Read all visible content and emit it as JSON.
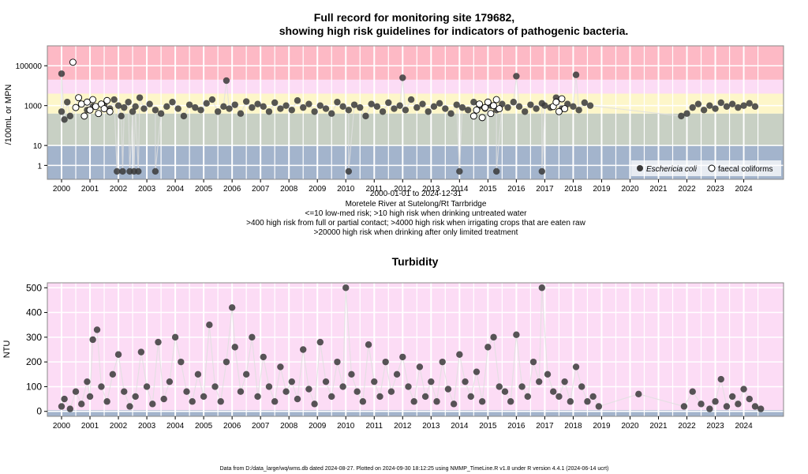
{
  "chart_data": [
    {
      "type": "scatter",
      "title_line1": "Full record for monitoring site 179682,",
      "title_line2": "showing high risk guidelines for indicators of pathogenic bacteria.",
      "ylabel": "/100mL or MPN",
      "yscale": "log",
      "ylim": [
        0.2,
        1000000
      ],
      "xlim": [
        1999.5,
        2025.4
      ],
      "y_ticks": [
        {
          "v": 1,
          "label": "1"
        },
        {
          "v": 10,
          "label": "10"
        },
        {
          "v": 1000,
          "label": "1000"
        },
        {
          "v": 100000,
          "label": "100000"
        }
      ],
      "x_ticks": [
        "2000",
        "2001",
        "2002",
        "2003",
        "2004",
        "2005",
        "2006",
        "2007",
        "2008",
        "2009",
        "2010",
        "2011",
        "2012",
        "2013",
        "2014",
        "2015",
        "2016",
        "2017",
        "2018",
        "2019",
        "2020",
        "2021",
        "2022",
        "2023",
        "2024"
      ],
      "risk_bands": [
        {
          "from": 0.2,
          "to": 10,
          "color": "#a3b4cc"
        },
        {
          "from": 10,
          "to": 400,
          "color": "#c8d0c4"
        },
        {
          "from": 400,
          "to": 4000,
          "color": "#fdf6c9"
        },
        {
          "from": 4000,
          "to": 20000,
          "color": "#fcdcf5"
        },
        {
          "from": 20000,
          "to": 1000000,
          "color": "#fdb9c5"
        }
      ],
      "info_lines": [
        "2000-01-01 to 2024-12-31",
        "Moretele River at Sutelong/Rt Tarrbridge",
        "<=10 low-med risk; >10 high risk when drinking untreated water",
        ">400 high risk from full or partial contact; >4000 high risk when irrigating crops that are eaten raw",
        ">20000 high risk when drinking after only limited treatment"
      ],
      "legend_position": "bottom-right",
      "series": [
        {
          "name": "Eschericia coli",
          "marker": "filled",
          "color": "#3a3a3a",
          "x": [
            2000.0,
            2000.1,
            2000.2,
            2000.3,
            2000.5,
            2000.7,
            2000.9,
            2001.1,
            2001.3,
            2001.5,
            2001.7,
            2001.85,
            2002.0,
            2002.1,
            2002.2,
            2002.35,
            2002.5,
            2002.6,
            2002.75,
            2002.9,
            2003.1,
            2003.3,
            2003.5,
            2003.7,
            2003.9,
            2004.1,
            2004.3,
            2004.5,
            2004.7,
            2004.9,
            2005.1,
            2005.3,
            2005.5,
            2005.7,
            2005.9,
            2006.1,
            2006.3,
            2006.5,
            2006.7,
            2006.9,
            2007.1,
            2007.3,
            2007.5,
            2007.7,
            2007.9,
            2008.1,
            2008.3,
            2008.5,
            2008.7,
            2008.9,
            2009.1,
            2009.3,
            2009.5,
            2009.7,
            2009.9,
            2010.1,
            2010.3,
            2010.5,
            2010.7,
            2010.9,
            2011.1,
            2011.3,
            2011.5,
            2011.7,
            2011.9,
            2012.1,
            2012.3,
            2012.5,
            2012.7,
            2012.9,
            2013.1,
            2013.3,
            2013.5,
            2013.7,
            2013.9,
            2014.1,
            2014.3,
            2014.5,
            2014.7,
            2014.9,
            2015.1,
            2015.3,
            2015.5,
            2015.7,
            2015.9,
            2016.1,
            2016.3,
            2016.5,
            2016.7,
            2016.9,
            2017.0,
            2017.2,
            2017.4,
            2017.6,
            2017.8,
            2018.0,
            2018.2,
            2018.4,
            2018.6,
            2021.8,
            2022.0,
            2022.2,
            2022.4,
            2022.6,
            2022.8,
            2023.0,
            2023.2,
            2023.4,
            2023.6,
            2023.8,
            2024.0,
            2024.2,
            2024.4,
            2001.95,
            2002.15,
            2002.4,
            2002.55,
            2002.7,
            2003.3,
            2010.1,
            2014.0,
            2015.3,
            2016.9,
            2018.1,
            2000.0,
            2005.8,
            2012.0,
            2016.0
          ],
          "y": [
            500,
            200,
            1500,
            300,
            800,
            1200,
            600,
            900,
            400,
            1100,
            700,
            2000,
            1000,
            300,
            800,
            1500,
            500,
            900,
            2500,
            700,
            1200,
            600,
            400,
            900,
            1500,
            700,
            300,
            1100,
            800,
            600,
            1300,
            2000,
            500,
            900,
            700,
            1100,
            400,
            1600,
            800,
            1200,
            900,
            500,
            1400,
            700,
            1000,
            600,
            1800,
            800,
            1200,
            500,
            1000,
            700,
            400,
            1500,
            900,
            600,
            1100,
            800,
            300,
            1200,
            900,
            500,
            1400,
            700,
            1000,
            600,
            2000,
            800,
            1200,
            500,
            900,
            1300,
            700,
            400,
            1100,
            800,
            600,
            1500,
            900,
            700,
            1000,
            600,
            1200,
            800,
            1500,
            900,
            500,
            1100,
            700,
            1300,
            1000,
            800,
            2500,
            700,
            1200,
            900,
            600,
            1400,
            1000,
            300,
            400,
            800,
            1200,
            600,
            1000,
            700,
            1400,
            900,
            1200,
            800,
            1000,
            1300,
            900,
            0.5,
            0.5,
            0.5,
            0.5,
            0.5,
            0.5,
            0.5,
            0.5,
            0.5,
            0.5,
            35000,
            40000,
            18000,
            25000,
            30000
          ]
        },
        {
          "name": "faecal coliforms",
          "marker": "open",
          "color": "#000000",
          "x": [
            2000.4,
            2000.5,
            2000.6,
            2000.7,
            2000.8,
            2000.9,
            2001.0,
            2001.1,
            2001.2,
            2001.3,
            2001.4,
            2001.5,
            2001.6,
            2001.7,
            2014.5,
            2014.6,
            2014.7,
            2014.8,
            2014.9,
            2015.0,
            2015.1,
            2015.2,
            2015.3,
            2015.4,
            2017.3,
            2017.4,
            2017.5,
            2017.6,
            2017.7
          ],
          "y": [
            150000,
            800,
            2500,
            1200,
            300,
            1500,
            600,
            2000,
            900,
            400,
            1200,
            700,
            1800,
            500,
            300,
            600,
            1200,
            250,
            800,
            1500,
            400,
            1000,
            2000,
            700,
            900,
            1500,
            500,
            2200,
            700
          ]
        }
      ]
    },
    {
      "type": "scatter",
      "title": "Turbidity",
      "ylabel": "NTU",
      "ylim": [
        -20,
        520
      ],
      "xlim": [
        1999.5,
        2025.4
      ],
      "y_ticks": [
        {
          "v": 0,
          "label": "0"
        },
        {
          "v": 100,
          "label": "100"
        },
        {
          "v": 200,
          "label": "200"
        },
        {
          "v": 300,
          "label": "300"
        },
        {
          "v": 400,
          "label": "400"
        },
        {
          "v": 500,
          "label": "500"
        }
      ],
      "x_ticks": [
        "2000",
        "2001",
        "2002",
        "2003",
        "2004",
        "2005",
        "2006",
        "2007",
        "2008",
        "2009",
        "2010",
        "2011",
        "2012",
        "2013",
        "2014",
        "2015",
        "2016",
        "2017",
        "2018",
        "2019",
        "2020",
        "2021",
        "2022",
        "2023",
        "2024"
      ],
      "risk_bands": [
        {
          "from": -20,
          "to": 5,
          "color": "#a3b4cc"
        },
        {
          "from": 5,
          "to": 520,
          "color": "#fcdcf5"
        }
      ],
      "series": [
        {
          "name": "Turbidity",
          "marker": "filled",
          "color": "#3a3a3a",
          "x": [
            2000.0,
            2000.1,
            2000.3,
            2000.5,
            2000.7,
            2000.9,
            2001.0,
            2001.1,
            2001.25,
            2001.4,
            2001.6,
            2001.8,
            2002.0,
            2002.2,
            2002.4,
            2002.6,
            2002.8,
            2003.0,
            2003.2,
            2003.4,
            2003.6,
            2003.8,
            2004.0,
            2004.2,
            2004.4,
            2004.6,
            2004.8,
            2005.0,
            2005.2,
            2005.4,
            2005.6,
            2005.8,
            2006.0,
            2006.1,
            2006.3,
            2006.5,
            2006.7,
            2006.9,
            2007.1,
            2007.3,
            2007.5,
            2007.7,
            2007.9,
            2008.1,
            2008.3,
            2008.5,
            2008.7,
            2008.9,
            2009.1,
            2009.3,
            2009.5,
            2009.7,
            2009.9,
            2010.0,
            2010.2,
            2010.4,
            2010.6,
            2010.8,
            2011.0,
            2011.2,
            2011.4,
            2011.6,
            2011.8,
            2012.0,
            2012.2,
            2012.4,
            2012.6,
            2012.8,
            2013.0,
            2013.2,
            2013.4,
            2013.6,
            2013.8,
            2014.0,
            2014.2,
            2014.4,
            2014.6,
            2014.8,
            2015.0,
            2015.2,
            2015.4,
            2015.6,
            2015.8,
            2016.0,
            2016.2,
            2016.4,
            2016.6,
            2016.8,
            2016.9,
            2017.1,
            2017.3,
            2017.5,
            2017.7,
            2017.9,
            2018.1,
            2018.3,
            2018.5,
            2018.7,
            2018.9,
            2020.3,
            2021.9,
            2022.2,
            2022.5,
            2022.8,
            2023.0,
            2023.2,
            2023.4,
            2023.6,
            2023.8,
            2024.0,
            2024.2,
            2024.4,
            2024.6
          ],
          "y": [
            20,
            50,
            10,
            80,
            30,
            120,
            60,
            290,
            330,
            100,
            40,
            150,
            230,
            80,
            20,
            60,
            240,
            100,
            30,
            280,
            50,
            120,
            300,
            200,
            80,
            40,
            150,
            60,
            350,
            100,
            40,
            200,
            420,
            260,
            80,
            150,
            300,
            60,
            220,
            100,
            40,
            180,
            80,
            120,
            50,
            250,
            90,
            30,
            280,
            120,
            60,
            200,
            100,
            500,
            150,
            80,
            40,
            270,
            120,
            60,
            200,
            80,
            150,
            220,
            100,
            40,
            180,
            60,
            120,
            40,
            200,
            90,
            30,
            230,
            120,
            60,
            160,
            40,
            260,
            300,
            100,
            80,
            40,
            310,
            100,
            60,
            200,
            120,
            500,
            150,
            80,
            60,
            120,
            40,
            180,
            100,
            40,
            60,
            20,
            70,
            20,
            80,
            30,
            10,
            40,
            130,
            20,
            60,
            30,
            90,
            50,
            20,
            10
          ]
        }
      ]
    }
  ],
  "footer": "Data from D:/data_large/wq/wms.db dated 2024-08-27. Plotted on 2024-09-30 18:12:25 using NMMP_TimeLine.R v1.8 under R version 4.4.1 (2024-06-14 ucrt)"
}
